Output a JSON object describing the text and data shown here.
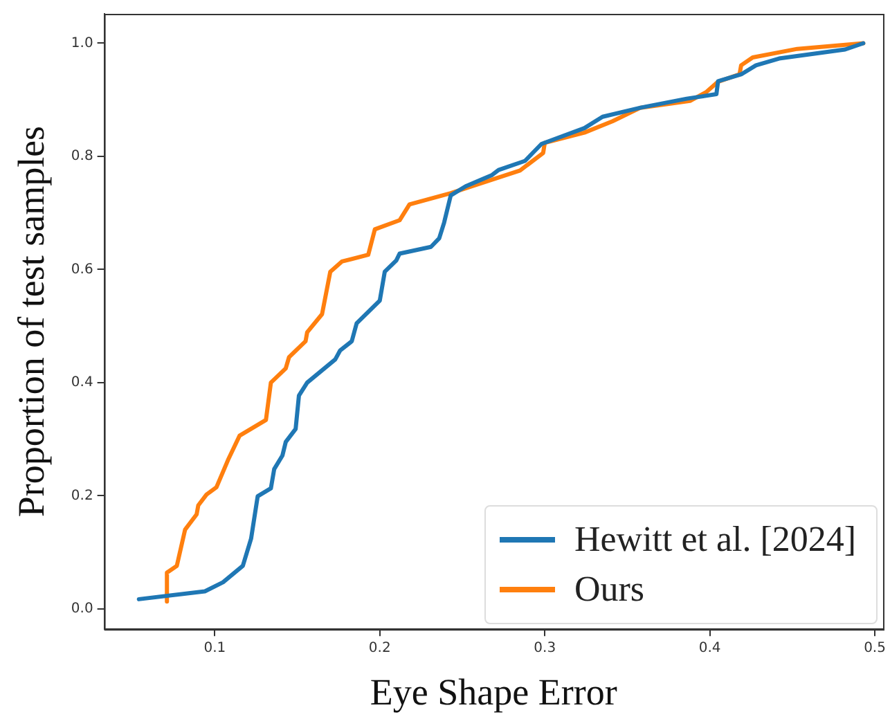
{
  "chart_data": {
    "type": "line",
    "xlabel": "Eye Shape Error",
    "ylabel": "Proportion of test samples",
    "xlim": [
      0.033,
      0.505
    ],
    "ylim": [
      -0.036,
      1.052
    ],
    "xticks": [
      0.1,
      0.2,
      0.3,
      0.4,
      0.5
    ],
    "yticks": [
      {
        "value": 0,
        "label": "0.0"
      },
      0.2,
      0.4,
      0.6,
      0.8,
      {
        "value": 1,
        "label": "1.0"
      }
    ],
    "grid": false,
    "legend": "bottom right",
    "marker": "none",
    "line_style": "solid",
    "series": [
      {
        "name": "Hewitt et al. [2024]",
        "color": "#1f77b4",
        "x": [
          0.054,
          0.094,
          0.105,
          0.117,
          0.122,
          0.126,
          0.134,
          0.136,
          0.141,
          0.143,
          0.149,
          0.151,
          0.156,
          0.173,
          0.176,
          0.183,
          0.186,
          0.2,
          0.203,
          0.21,
          0.212,
          0.231,
          0.236,
          0.239,
          0.243,
          0.252,
          0.268,
          0.272,
          0.288,
          0.298,
          0.324,
          0.335,
          0.358,
          0.386,
          0.404,
          0.405,
          0.419,
          0.428,
          0.442,
          0.482,
          0.493
        ],
        "values": [
          0.017,
          0.031,
          0.047,
          0.076,
          0.124,
          0.199,
          0.213,
          0.247,
          0.271,
          0.295,
          0.318,
          0.377,
          0.4,
          0.441,
          0.457,
          0.473,
          0.505,
          0.545,
          0.596,
          0.616,
          0.628,
          0.64,
          0.655,
          0.683,
          0.731,
          0.747,
          0.767,
          0.776,
          0.792,
          0.822,
          0.85,
          0.87,
          0.886,
          0.902,
          0.91,
          0.933,
          0.945,
          0.961,
          0.973,
          0.989,
          1.0
        ]
      },
      {
        "name": "Ours",
        "color": "#ff7f0e",
        "x": [
          0.071,
          0.071,
          0.077,
          0.082,
          0.089,
          0.09,
          0.095,
          0.101,
          0.108,
          0.115,
          0.131,
          0.134,
          0.143,
          0.145,
          0.155,
          0.156,
          0.165,
          0.17,
          0.177,
          0.193,
          0.197,
          0.212,
          0.218,
          0.238,
          0.243,
          0.285,
          0.299,
          0.3,
          0.324,
          0.341,
          0.358,
          0.388,
          0.398,
          0.405,
          0.418,
          0.419,
          0.426,
          0.453,
          0.493
        ],
        "values": [
          0.013,
          0.064,
          0.076,
          0.14,
          0.167,
          0.183,
          0.202,
          0.215,
          0.263,
          0.306,
          0.334,
          0.4,
          0.425,
          0.445,
          0.473,
          0.489,
          0.521,
          0.596,
          0.614,
          0.626,
          0.671,
          0.687,
          0.715,
          0.731,
          0.735,
          0.775,
          0.806,
          0.824,
          0.842,
          0.862,
          0.886,
          0.898,
          0.914,
          0.932,
          0.945,
          0.961,
          0.975,
          0.99,
          1.0
        ]
      }
    ]
  }
}
